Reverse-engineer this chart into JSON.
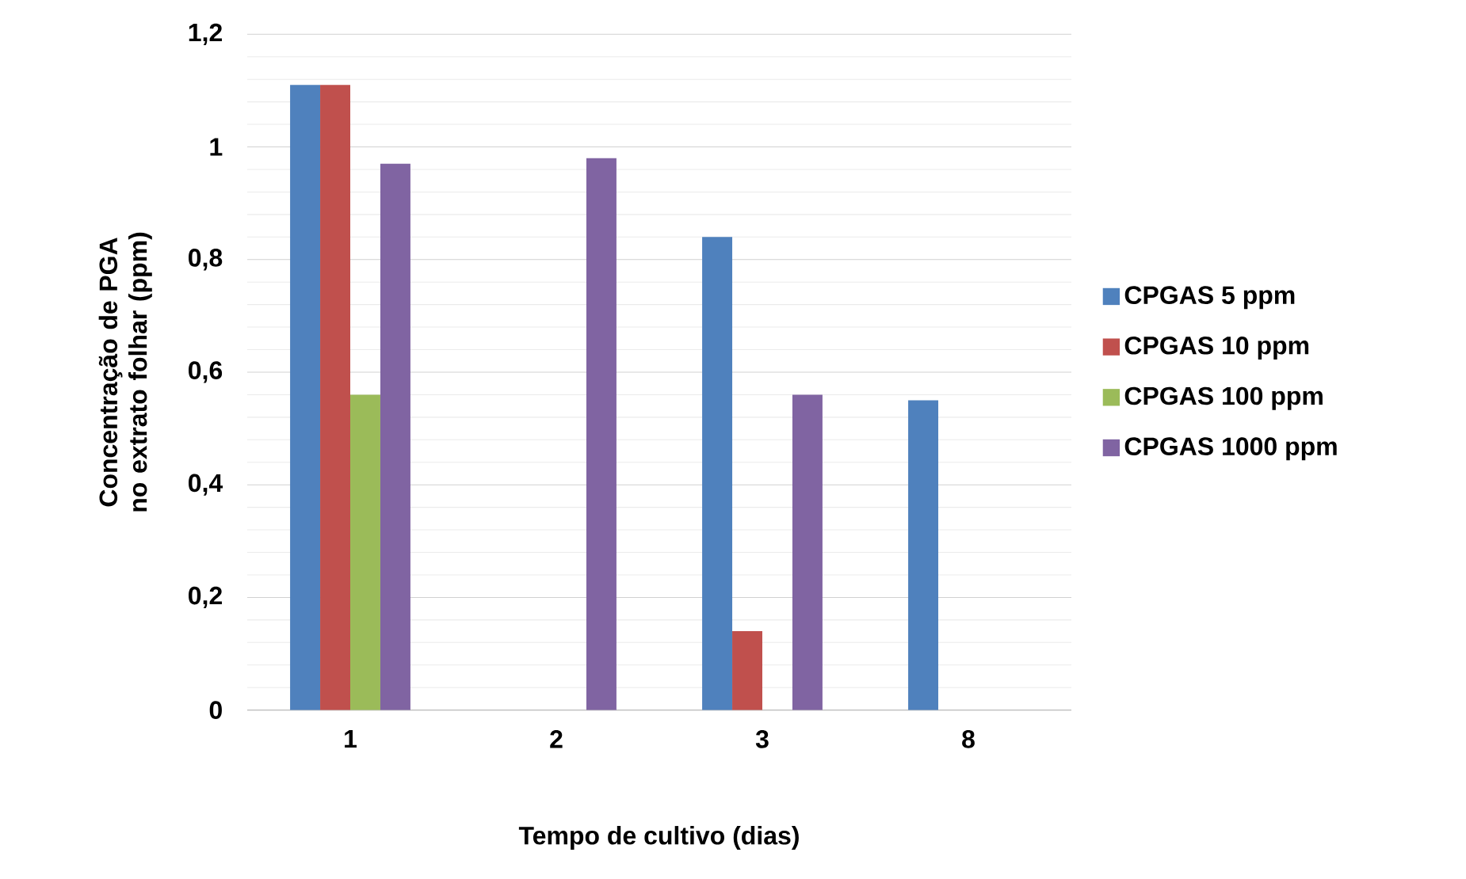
{
  "chart_data": {
    "type": "bar",
    "xlabel": "Tempo de cultivo (dias)",
    "ylabel": "Concentração de PGA no extrato folhar (ppm)",
    "categories": [
      "1",
      "2",
      "3",
      "8"
    ],
    "series": [
      {
        "name": "CPGAS 5 ppm",
        "color": "#4f81bd",
        "values": [
          1.11,
          null,
          0.84,
          0.55
        ]
      },
      {
        "name": "CPGAS 10 ppm",
        "color": "#c0504d",
        "values": [
          1.11,
          null,
          0.14,
          null
        ]
      },
      {
        "name": "CPGAS 100 ppm",
        "color": "#9bbb59",
        "values": [
          0.56,
          null,
          null,
          null
        ]
      },
      {
        "name": "CPGAS 1000 ppm",
        "color": "#8064a2",
        "values": [
          0.97,
          0.98,
          0.56,
          null
        ]
      }
    ],
    "ylim": [
      0,
      1.2
    ],
    "yticks": [
      0,
      {
        "value": 0.2,
        "label": "0,2"
      },
      {
        "value": 0.4,
        "label": "0,4"
      },
      {
        "value": 0.6,
        "label": "0,6"
      },
      {
        "value": 0.8,
        "label": "0,8"
      },
      1,
      {
        "value": 1.2,
        "label": "1,2"
      }
    ],
    "grid": "y",
    "legend": "right"
  }
}
